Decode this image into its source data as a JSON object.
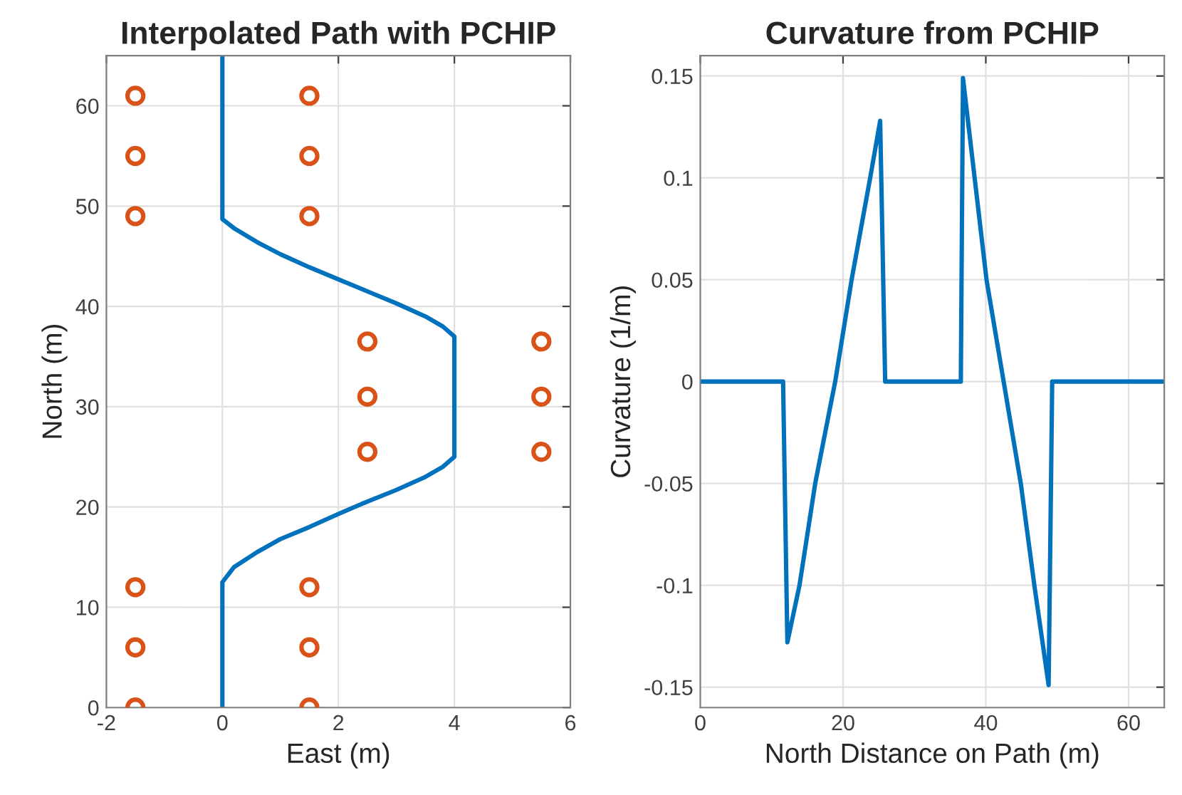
{
  "chart_data": [
    {
      "type": "line",
      "title": "Interpolated Path with PCHIP",
      "xlabel": "East (m)",
      "ylabel": "North (m)",
      "xlim": [
        -2,
        6
      ],
      "ylim": [
        0,
        65
      ],
      "xticks": [
        -2,
        0,
        2,
        4,
        6
      ],
      "yticks": [
        0,
        10,
        20,
        30,
        40,
        50,
        60
      ],
      "grid": true,
      "series": [
        {
          "color": "#0072bd",
          "x": [
            0,
            0,
            0.2,
            0.6,
            1,
            1.5,
            2,
            2.4,
            3,
            3.5,
            3.8,
            4,
            4,
            3.8,
            3.5,
            3,
            2.5,
            2,
            1.5,
            1,
            0.6,
            0.2,
            0,
            0
          ],
          "values": [
            0,
            12.5,
            14,
            15.5,
            16.8,
            18,
            19.3,
            20.3,
            21.7,
            23,
            24,
            25,
            37,
            38,
            39,
            40.3,
            41.5,
            42.7,
            43.9,
            45.2,
            46.4,
            47.8,
            48.7,
            65
          ]
        },
        {
          "type": "scatter",
          "marker": "circle",
          "color": "#d95319",
          "x": [
            -1.5,
            -1.5,
            -1.5,
            -1.5,
            -1.5,
            -1.5,
            1.5,
            1.5,
            1.5,
            1.5,
            1.5,
            1.5,
            2.5,
            2.5,
            2.5,
            5.5,
            5.5,
            5.5
          ],
          "values": [
            0,
            6,
            12,
            49,
            55,
            61,
            0,
            6,
            12,
            49,
            55,
            61,
            25.5,
            31,
            36.5,
            25.5,
            31,
            36.5
          ]
        }
      ]
    },
    {
      "type": "line",
      "title": "Curvature from PCHIP",
      "xlabel": "North Distance on Path (m)",
      "ylabel": "Curvature (1/m)",
      "xlim": [
        0,
        65
      ],
      "ylim": [
        -0.16,
        0.16
      ],
      "xticks": [
        0,
        20,
        40,
        60
      ],
      "yticks": [
        -0.15,
        -0.1,
        -0.05,
        0,
        0.05,
        0.1,
        0.15
      ],
      "grid": true,
      "series": [
        {
          "color": "#0072bd",
          "x": [
            0,
            11.6,
            12.2,
            13.9,
            16.1,
            18.9,
            21.2,
            23.8,
            25.2,
            25.9,
            36.5,
            36.8,
            40.1,
            42.5,
            44.9,
            46.8,
            48.8,
            49.3,
            65
          ],
          "values": [
            0,
            0,
            -0.128,
            -0.1,
            -0.05,
            0,
            0.05,
            0.1,
            0.128,
            0,
            0,
            0.149,
            0.05,
            0,
            -0.05,
            -0.1,
            -0.149,
            0,
            0
          ]
        }
      ]
    }
  ]
}
